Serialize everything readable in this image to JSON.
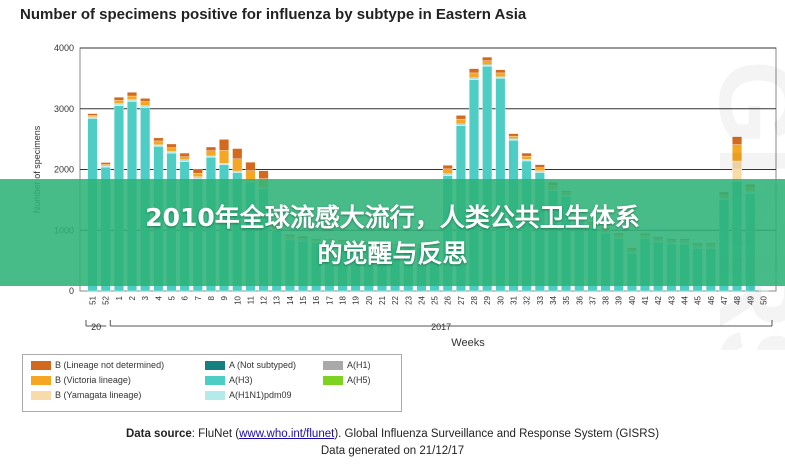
{
  "title": "Number of specimens positive for influenza by subtype in Eastern Asia",
  "watermark": "GISRS",
  "overlay_text": {
    "line1": "2010年全球流感大流行，人类公共卫生体系",
    "line2": "的觉醒与反思"
  },
  "chart_data": {
    "type": "bar",
    "stacked": true,
    "title": "Number of specimens positive for influenza by subtype in Eastern Asia",
    "ylabel": "Number of specimens",
    "xlabel": "Weeks",
    "ylim": [
      0,
      4000
    ],
    "yticks": [
      0,
      1000,
      2000,
      3000,
      4000
    ],
    "grid": true,
    "year_labels": [
      "20",
      "2017"
    ],
    "categories": [
      "51",
      "52",
      "1",
      "2",
      "3",
      "4",
      "5",
      "6",
      "7",
      "8",
      "9",
      "10",
      "11",
      "12",
      "13",
      "14",
      "15",
      "16",
      "17",
      "18",
      "19",
      "20",
      "21",
      "22",
      "23",
      "24",
      "25",
      "26",
      "27",
      "28",
      "29",
      "30",
      "31",
      "32",
      "33",
      "34",
      "35",
      "36",
      "37",
      "38",
      "39",
      "40",
      "41",
      "42",
      "43",
      "44",
      "45",
      "46",
      "47",
      "48",
      "49",
      "50"
    ],
    "series": [
      {
        "name": "A(H3)",
        "color": "#4ecdc4",
        "values": [
          2840,
          2040,
          3050,
          3120,
          3020,
          2380,
          2270,
          2130,
          1850,
          2200,
          2080,
          1950,
          1790,
          1680,
          1000,
          840,
          820,
          800,
          790,
          780,
          760,
          750,
          730,
          720,
          720,
          710,
          730,
          1900,
          2720,
          3480,
          3700,
          3500,
          2480,
          2140,
          1950,
          1650,
          1550,
          1150,
          1050,
          950,
          860,
          620,
          860,
          800,
          770,
          770,
          700,
          700,
          1500,
          1800,
          1600,
          10
        ]
      },
      {
        "name": "A(H1N1)pdm09",
        "color": "#b5eaea",
        "values": [
          20,
          15,
          30,
          20,
          20,
          20,
          20,
          20,
          20,
          20,
          15,
          15,
          10,
          10,
          10,
          10,
          10,
          10,
          10,
          10,
          10,
          10,
          10,
          10,
          10,
          10,
          10,
          20,
          20,
          20,
          20,
          20,
          20,
          20,
          20,
          20,
          20,
          20,
          20,
          20,
          20,
          20,
          20,
          20,
          20,
          20,
          20,
          20,
          20,
          30,
          30,
          0
        ]
      },
      {
        "name": "A(Not subtyped)",
        "color": "#167f7f",
        "values": [
          10,
          10,
          10,
          10,
          10,
          10,
          10,
          10,
          10,
          10,
          10,
          10,
          10,
          10,
          10,
          10,
          10,
          10,
          10,
          10,
          10,
          10,
          10,
          10,
          10,
          10,
          10,
          10,
          10,
          10,
          10,
          10,
          10,
          10,
          10,
          10,
          10,
          10,
          10,
          10,
          10,
          10,
          10,
          10,
          10,
          10,
          10,
          10,
          10,
          10,
          10,
          0
        ]
      },
      {
        "name": "A(H1)",
        "color": "#a9a9a9",
        "values": [
          0,
          0,
          0,
          0,
          0,
          0,
          0,
          0,
          0,
          0,
          0,
          0,
          0,
          0,
          0,
          0,
          0,
          0,
          0,
          0,
          0,
          0,
          0,
          0,
          0,
          0,
          0,
          0,
          0,
          0,
          0,
          0,
          0,
          0,
          0,
          0,
          0,
          0,
          0,
          0,
          0,
          0,
          0,
          0,
          0,
          0,
          0,
          0,
          0,
          0,
          0,
          0
        ]
      },
      {
        "name": "A(H5)",
        "color": "#7ed321",
        "values": [
          0,
          0,
          0,
          0,
          0,
          0,
          0,
          0,
          0,
          0,
          0,
          0,
          0,
          0,
          0,
          0,
          0,
          0,
          0,
          0,
          0,
          0,
          0,
          0,
          0,
          0,
          0,
          0,
          0,
          0,
          0,
          0,
          0,
          0,
          0,
          0,
          0,
          0,
          0,
          0,
          0,
          0,
          0,
          0,
          0,
          0,
          0,
          0,
          0,
          0,
          0,
          0
        ]
      },
      {
        "name": "B (Yamagata lineage)",
        "color": "#f7dcaa",
        "values": [
          0,
          0,
          0,
          0,
          0,
          0,
          0,
          0,
          0,
          0,
          0,
          0,
          0,
          0,
          0,
          0,
          0,
          0,
          0,
          0,
          0,
          0,
          0,
          0,
          0,
          0,
          0,
          0,
          0,
          0,
          0,
          0,
          0,
          0,
          0,
          0,
          0,
          0,
          0,
          0,
          0,
          0,
          0,
          0,
          0,
          0,
          0,
          0,
          0,
          300,
          0,
          0
        ]
      },
      {
        "name": "B (Victoria lineage)",
        "color": "#f5a623",
        "values": [
          20,
          20,
          50,
          60,
          70,
          60,
          60,
          50,
          60,
          80,
          210,
          200,
          170,
          150,
          80,
          40,
          30,
          20,
          20,
          20,
          20,
          20,
          20,
          20,
          20,
          20,
          20,
          80,
          80,
          80,
          60,
          60,
          40,
          50,
          50,
          60,
          40,
          30,
          30,
          30,
          30,
          30,
          30,
          30,
          30,
          30,
          30,
          30,
          50,
          270,
          60,
          5
        ]
      },
      {
        "name": "B (Lineage not determined)",
        "color": "#d2691e",
        "values": [
          30,
          30,
          50,
          60,
          50,
          50,
          60,
          60,
          60,
          60,
          180,
          170,
          140,
          130,
          60,
          30,
          30,
          20,
          20,
          20,
          20,
          20,
          20,
          20,
          20,
          20,
          20,
          60,
          60,
          70,
          60,
          50,
          40,
          50,
          50,
          50,
          30,
          30,
          30,
          30,
          30,
          30,
          30,
          30,
          30,
          30,
          30,
          30,
          50,
          130,
          60,
          5
        ]
      }
    ]
  },
  "legend": {
    "items": [
      {
        "label": "B (Lineage not determined)",
        "color": "#d2691e"
      },
      {
        "label": "B (Victoria lineage)",
        "color": "#f5a623"
      },
      {
        "label": "B (Yamagata lineage)",
        "color": "#f7dcaa"
      },
      {
        "label": "A (Not subtyped)",
        "color": "#167f7f"
      },
      {
        "label": "A(H3)",
        "color": "#4ecdc4"
      },
      {
        "label": "A(H1N1)pdm09",
        "color": "#b5eaea"
      },
      {
        "label": "A(H1)",
        "color": "#a9a9a9"
      },
      {
        "label": "A(H5)",
        "color": "#7ed321"
      }
    ]
  },
  "source": {
    "label": "Data source",
    "text_before": ": FluNet (",
    "link": "www.who.int/flunet",
    "text_after": "). Global Influenza Surveillance and Response System (GISRS)",
    "generated": "Data generated on 21/12/17"
  }
}
